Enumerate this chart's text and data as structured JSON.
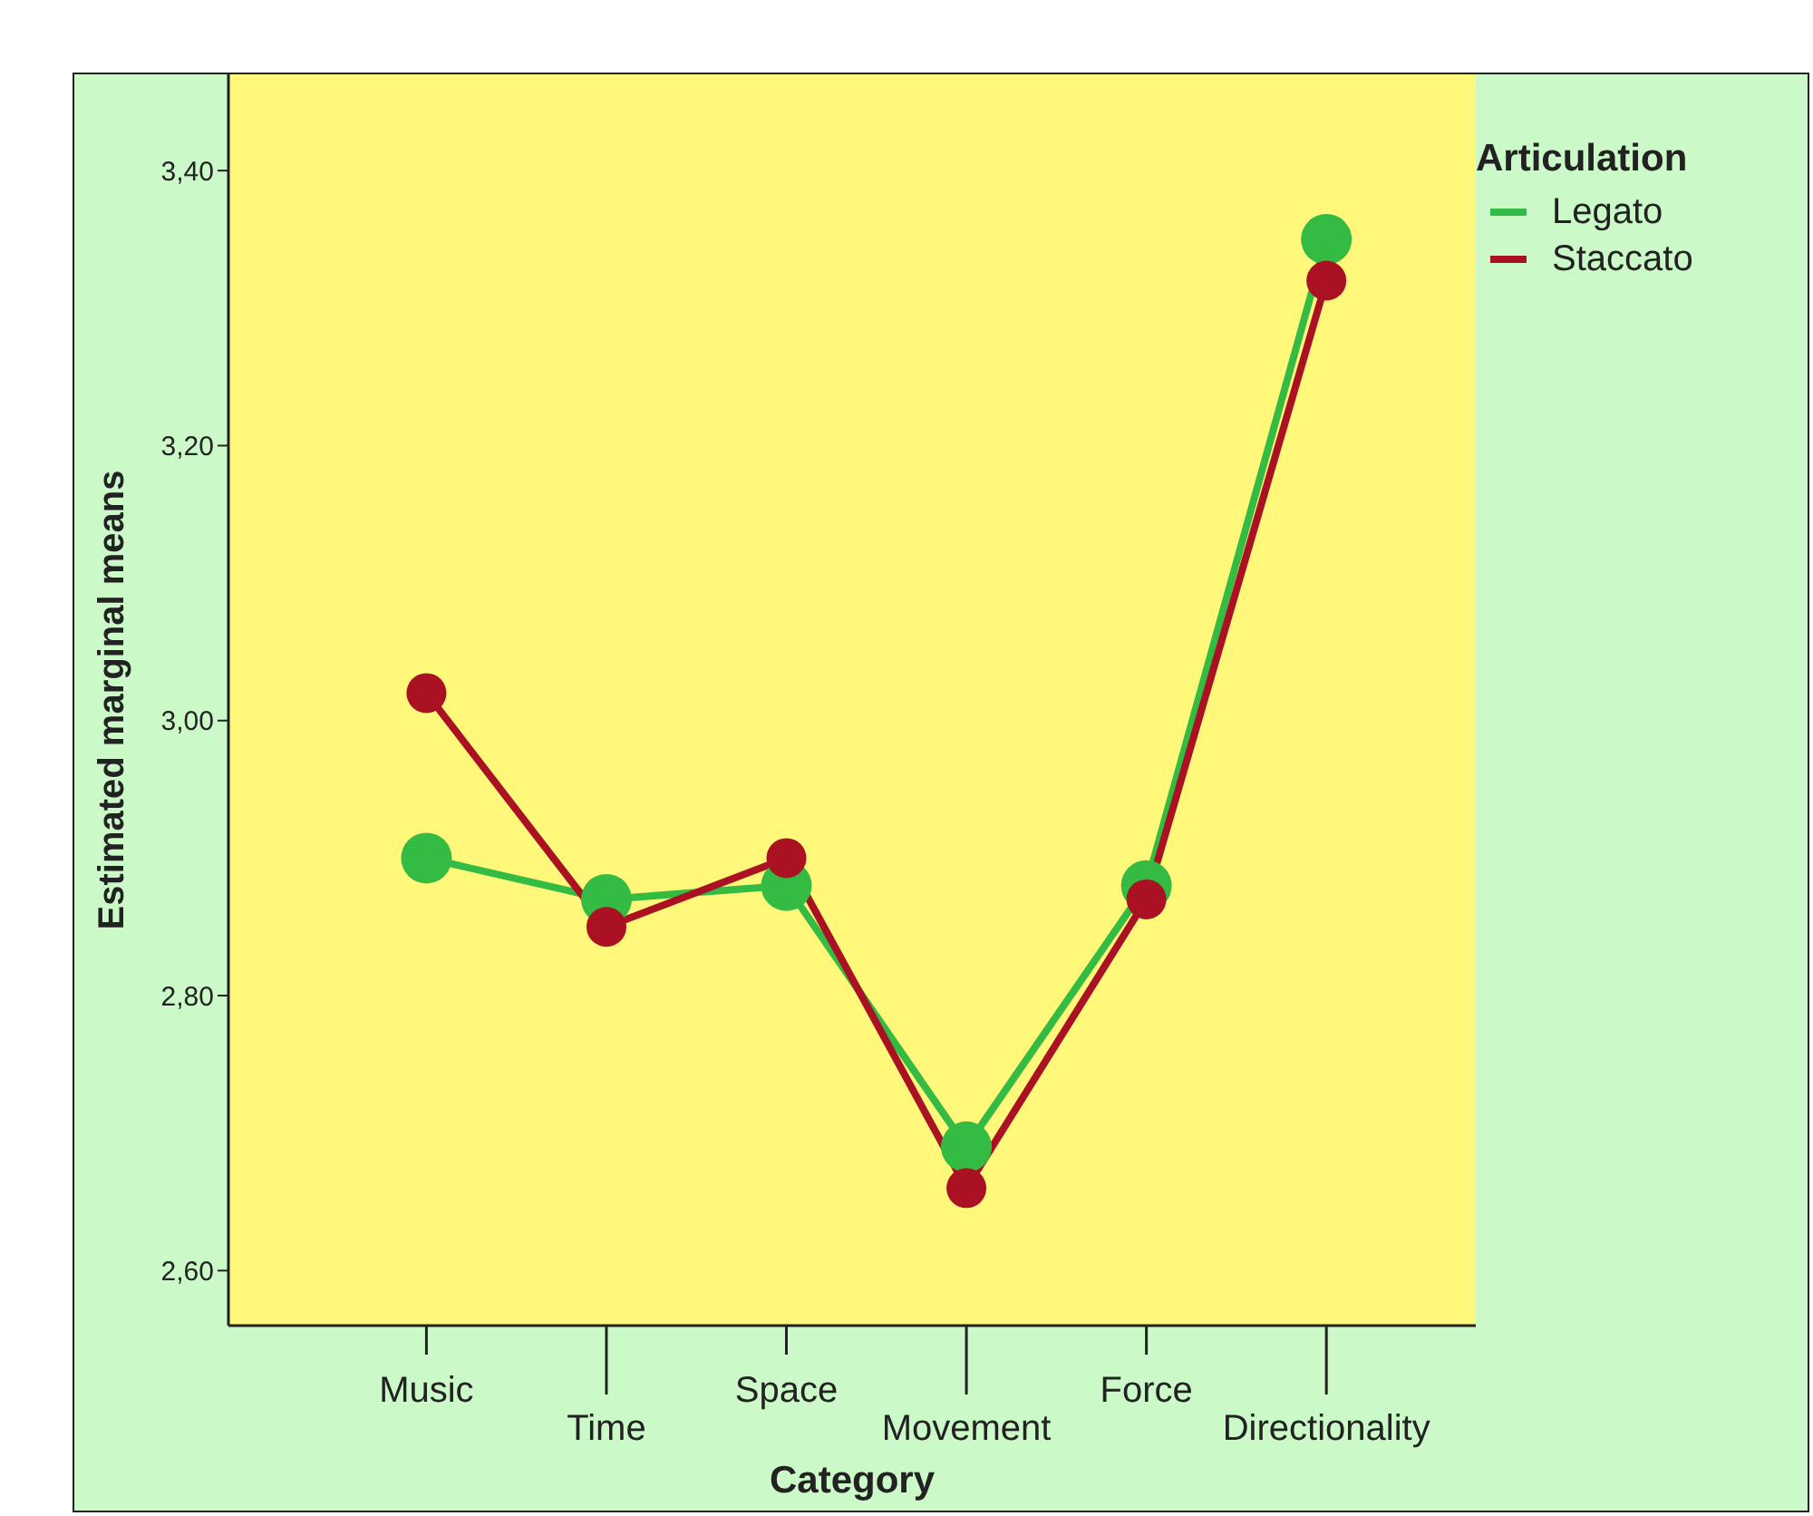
{
  "chart_data": {
    "type": "line",
    "xlabel": "Category",
    "ylabel": "Estimated marginal means",
    "legend_title": "Articulation",
    "categories": [
      "Music",
      "Time",
      "Space",
      "Movement",
      "Force",
      "Directionality"
    ],
    "series": [
      {
        "name": "Legato",
        "color": "#33bb44",
        "values": [
          2.9,
          2.87,
          2.88,
          2.69,
          2.88,
          3.35
        ]
      },
      {
        "name": "Staccato",
        "color": "#aa1122",
        "values": [
          3.02,
          2.85,
          2.9,
          2.66,
          2.87,
          3.32
        ]
      }
    ],
    "ylim": [
      2.56,
      3.47
    ],
    "yticks": [
      {
        "value": 2.6,
        "label": "2,60"
      },
      {
        "value": 2.8,
        "label": "2,80"
      },
      {
        "value": 3.0,
        "label": "3,00"
      },
      {
        "value": 3.2,
        "label": "3,20"
      },
      {
        "value": 3.4,
        "label": "3,40"
      }
    ],
    "grid": false,
    "legend": "top right",
    "marker": "circle",
    "line_style": "solid"
  }
}
